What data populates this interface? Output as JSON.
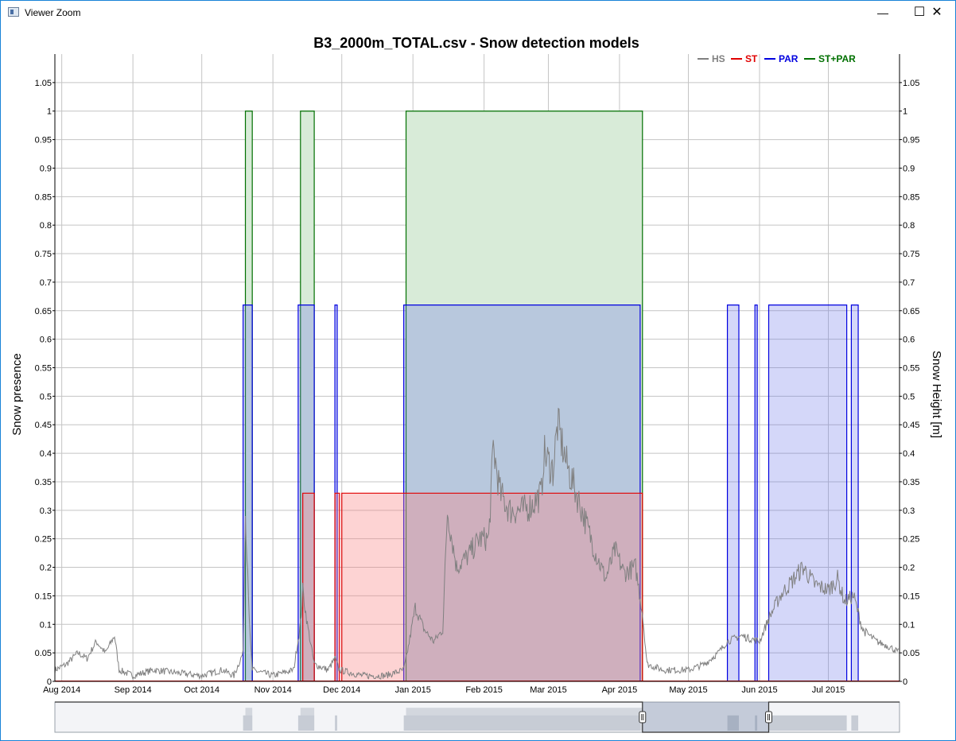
{
  "window": {
    "title": "Viewer Zoom",
    "minimize_glyph": "—",
    "maximize_glyph": "☐",
    "close_glyph": "✕"
  },
  "chart_data": {
    "type": "area",
    "title": "B3_2000m_TOTAL.csv - Snow detection models",
    "ylabel_left": "Snow presence",
    "ylabel_right": "Snow Height [m]",
    "xlabel": "",
    "ylim": [
      0,
      1.1
    ],
    "yticks": [
      "0",
      "0.05",
      "0.1",
      "0.15",
      "0.2",
      "0.25",
      "0.3",
      "0.35",
      "0.4",
      "0.45",
      "0.5",
      "0.55",
      "0.6",
      "0.65",
      "0.7",
      "0.75",
      "0.8",
      "0.85",
      "0.9",
      "0.95",
      "1",
      "1.05"
    ],
    "xlim": [
      "2014-07-29",
      "2015-08-01"
    ],
    "xticks": [
      {
        "date": "2014-08-01",
        "label": "Aug 2014"
      },
      {
        "date": "2014-09-01",
        "label": "Sep 2014"
      },
      {
        "date": "2014-10-01",
        "label": "Oct 2014"
      },
      {
        "date": "2014-11-01",
        "label": "Nov 2014"
      },
      {
        "date": "2014-12-01",
        "label": "Dec 2014"
      },
      {
        "date": "2015-01-01",
        "label": "Jan 2015"
      },
      {
        "date": "2015-02-01",
        "label": "Feb 2015"
      },
      {
        "date": "2015-03-01",
        "label": "Mar 2015"
      },
      {
        "date": "2015-04-01",
        "label": "Apr 2015"
      },
      {
        "date": "2015-05-01",
        "label": "May 2015"
      },
      {
        "date": "2015-06-01",
        "label": "Jun 2015"
      },
      {
        "date": "2015-07-01",
        "label": "Jul 2015"
      }
    ],
    "grid": true,
    "legend_position": "top-right",
    "legend": [
      {
        "name": "HS",
        "color": "#808080"
      },
      {
        "name": "ST",
        "color": "#e00000"
      },
      {
        "name": "PAR",
        "color": "#0000e0"
      },
      {
        "name": "ST+PAR",
        "color": "#007000"
      }
    ],
    "series": [
      {
        "name": "ST+PAR",
        "color": "#007000",
        "fill": "#d8ebd8",
        "segments": [
          {
            "start": "2014-10-20",
            "end": "2014-10-23",
            "value": 1
          },
          {
            "start": "2014-11-13",
            "end": "2014-11-19",
            "value": 1
          },
          {
            "start": "2014-12-29",
            "end": "2015-04-11",
            "value": 1
          }
        ]
      },
      {
        "name": "PAR",
        "color": "#0000e0",
        "fill": "rgba(100,110,235,0.28)",
        "segments": [
          {
            "start": "2014-10-19",
            "end": "2014-10-23",
            "value": 0.66
          },
          {
            "start": "2014-11-12",
            "end": "2014-11-19",
            "value": 0.66
          },
          {
            "start": "2014-11-28",
            "end": "2014-11-29",
            "value": 0.66
          },
          {
            "start": "2014-12-28",
            "end": "2015-04-10",
            "value": 0.66
          },
          {
            "start": "2015-05-18",
            "end": "2015-05-23",
            "value": 0.66
          },
          {
            "start": "2015-05-30",
            "end": "2015-05-31",
            "value": 0.66
          },
          {
            "start": "2015-06-05",
            "end": "2015-07-09",
            "value": 0.66
          },
          {
            "start": "2015-07-11",
            "end": "2015-07-14",
            "value": 0.66
          }
        ]
      },
      {
        "name": "ST",
        "color": "#e00000",
        "fill": "rgba(250,130,130,0.35)",
        "segments": [
          {
            "start": "2014-11-14",
            "end": "2014-11-19",
            "value": 0.33
          },
          {
            "start": "2014-11-28",
            "end": "2014-11-30",
            "value": 0.33
          },
          {
            "start": "2014-12-01",
            "end": "2015-04-11",
            "value": 0.33
          }
        ]
      },
      {
        "name": "HS",
        "color": "#808080",
        "points": [
          [
            "2014-07-29",
            0.02
          ],
          [
            "2014-08-03",
            0.03
          ],
          [
            "2014-08-08",
            0.05
          ],
          [
            "2014-08-12",
            0.04
          ],
          [
            "2014-08-16",
            0.07
          ],
          [
            "2014-08-20",
            0.05
          ],
          [
            "2014-08-24",
            0.08
          ],
          [
            "2014-08-26",
            0.02
          ],
          [
            "2014-09-01",
            0.01
          ],
          [
            "2014-09-10",
            0.02
          ],
          [
            "2014-09-20",
            0.015
          ],
          [
            "2014-10-01",
            0.01
          ],
          [
            "2014-10-10",
            0.02
          ],
          [
            "2014-10-15",
            0.01
          ],
          [
            "2014-10-19",
            0.05
          ],
          [
            "2014-10-20",
            0.3
          ],
          [
            "2014-10-21",
            0.2
          ],
          [
            "2014-10-22",
            0.08
          ],
          [
            "2014-10-23",
            0.02
          ],
          [
            "2014-11-01",
            0.01
          ],
          [
            "2014-11-10",
            0.02
          ],
          [
            "2014-11-13",
            0.1
          ],
          [
            "2014-11-14",
            0.16
          ],
          [
            "2014-11-16",
            0.1
          ],
          [
            "2014-11-19",
            0.03
          ],
          [
            "2014-11-25",
            0.02
          ],
          [
            "2014-11-28",
            0.04
          ],
          [
            "2014-11-30",
            0.02
          ],
          [
            "2014-12-10",
            0.01
          ],
          [
            "2014-12-20",
            0.01
          ],
          [
            "2014-12-28",
            0.02
          ],
          [
            "2014-12-30",
            0.06
          ],
          [
            "2015-01-02",
            0.13
          ],
          [
            "2015-01-06",
            0.09
          ],
          [
            "2015-01-10",
            0.07
          ],
          [
            "2015-01-14",
            0.09
          ],
          [
            "2015-01-16",
            0.3
          ],
          [
            "2015-01-20",
            0.2
          ],
          [
            "2015-01-25",
            0.22
          ],
          [
            "2015-01-30",
            0.25
          ],
          [
            "2015-02-03",
            0.25
          ],
          [
            "2015-02-05",
            0.41
          ],
          [
            "2015-02-08",
            0.33
          ],
          [
            "2015-02-12",
            0.3
          ],
          [
            "2015-02-18",
            0.3
          ],
          [
            "2015-02-22",
            0.31
          ],
          [
            "2015-02-26",
            0.33
          ],
          [
            "2015-02-27",
            0.4
          ],
          [
            "2015-03-03",
            0.37
          ],
          [
            "2015-03-05",
            0.45
          ],
          [
            "2015-03-09",
            0.38
          ],
          [
            "2015-03-14",
            0.32
          ],
          [
            "2015-03-18",
            0.27
          ],
          [
            "2015-03-22",
            0.22
          ],
          [
            "2015-03-26",
            0.18
          ],
          [
            "2015-03-30",
            0.23
          ],
          [
            "2015-04-03",
            0.19
          ],
          [
            "2015-04-08",
            0.2
          ],
          [
            "2015-04-11",
            0.12
          ],
          [
            "2015-04-13",
            0.03
          ],
          [
            "2015-04-20",
            0.02
          ],
          [
            "2015-05-01",
            0.02
          ],
          [
            "2015-05-08",
            0.03
          ],
          [
            "2015-05-14",
            0.05
          ],
          [
            "2015-05-18",
            0.07
          ],
          [
            "2015-05-24",
            0.08
          ],
          [
            "2015-06-01",
            0.07
          ],
          [
            "2015-06-05",
            0.11
          ],
          [
            "2015-06-10",
            0.15
          ],
          [
            "2015-06-16",
            0.18
          ],
          [
            "2015-06-20",
            0.2
          ],
          [
            "2015-06-25",
            0.17
          ],
          [
            "2015-07-01",
            0.16
          ],
          [
            "2015-07-05",
            0.18
          ],
          [
            "2015-07-08",
            0.14
          ],
          [
            "2015-07-12",
            0.15
          ],
          [
            "2015-07-16",
            0.09
          ],
          [
            "2015-07-22",
            0.07
          ],
          [
            "2015-07-28",
            0.06
          ],
          [
            "2015-08-01",
            0.05
          ]
        ]
      }
    ],
    "navigator": {
      "window_start": "2015-04-11",
      "window_end": "2015-06-05"
    }
  }
}
